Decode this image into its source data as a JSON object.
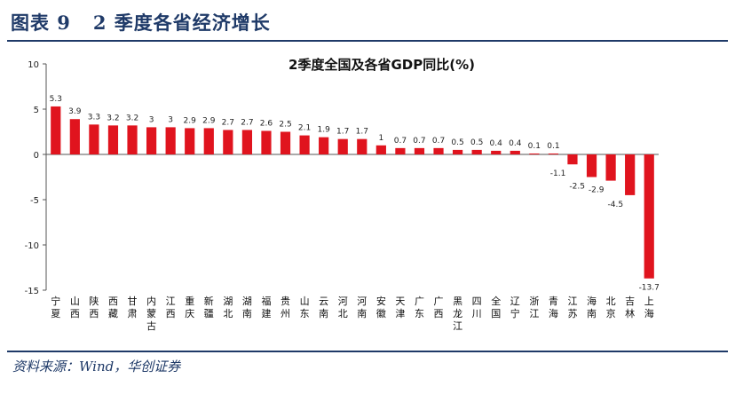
{
  "header": {
    "figure_title": "图表 9   2 季度各省经济增长"
  },
  "source": {
    "text": "资料来源：Wind，华创证券"
  },
  "colors": {
    "bar": "#e0141e",
    "accent": "#1f3a68"
  },
  "chart_data": {
    "type": "bar",
    "title": "2季度全国及各省GDP同比(%)",
    "xlabel": "",
    "ylabel": "",
    "ylim": [
      -15,
      10
    ],
    "yticks": [
      10,
      5,
      0,
      -5,
      -10,
      -15
    ],
    "grid": false,
    "legend": "none",
    "categories": [
      "宁夏",
      "山西",
      "陕西",
      "西藏",
      "甘肃",
      "内蒙古",
      "江西",
      "重庆",
      "新疆",
      "湖北",
      "湖南",
      "福建",
      "贵州",
      "山东",
      "云南",
      "河北",
      "河南",
      "安徽",
      "天津",
      "广东",
      "广西",
      "黑龙江",
      "四川",
      "全国",
      "辽宁",
      "浙江",
      "青海",
      "江苏",
      "海南",
      "北京",
      "吉林",
      "上海"
    ],
    "values": [
      5.3,
      3.9,
      3.3,
      3.2,
      3.2,
      3,
      3,
      2.9,
      2.9,
      2.7,
      2.7,
      2.6,
      2.5,
      2.1,
      1.9,
      1.7,
      1.7,
      1,
      0.7,
      0.7,
      0.7,
      0.5,
      0.5,
      0.4,
      0.4,
      0.1,
      0.1,
      -1.1,
      -2.5,
      -2.9,
      -4.5,
      -13.7
    ],
    "value_labels": [
      "5.3",
      "3.9",
      "3.3",
      "3.2",
      "3.2",
      "3",
      "3",
      "2.9",
      "2.9",
      "2.7",
      "2.7",
      "2.6",
      "2.5",
      "2.1",
      "1.9",
      "1.7",
      "1.7",
      "1",
      "0.7",
      "0.7",
      "0.7",
      "0.5",
      "0.5",
      "0.4",
      "0.4",
      "0.1",
      "0.1",
      "-1.1",
      "-2.5",
      "-2.9",
      "-4.5",
      "-13.7"
    ]
  }
}
